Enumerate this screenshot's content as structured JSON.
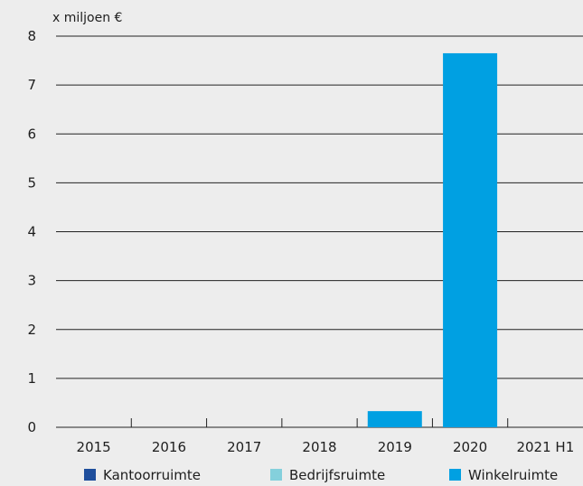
{
  "chart_data": {
    "type": "bar",
    "stacked": true,
    "unit_label": "x miljoen €",
    "categories": [
      "2015",
      "2016",
      "2017",
      "2018",
      "2019",
      "2020",
      "2021 H1"
    ],
    "series": [
      {
        "name": "Kantoorruimte",
        "color": "#1e4e9c",
        "values": [
          0,
          0,
          0,
          0,
          0,
          0,
          0
        ]
      },
      {
        "name": "Bedrijfsruimte",
        "color": "#84d0dc",
        "values": [
          0,
          0,
          0,
          0,
          0,
          0,
          0
        ]
      },
      {
        "name": "Winkelruimte",
        "color": "#00a0e2",
        "values": [
          0,
          0,
          0,
          0,
          0.33,
          7.65,
          0
        ]
      }
    ],
    "ylim": [
      0,
      8
    ],
    "yticks": [
      0,
      1,
      2,
      3,
      4,
      5,
      6,
      7,
      8
    ],
    "grid": true,
    "legend_position": "bottom"
  }
}
